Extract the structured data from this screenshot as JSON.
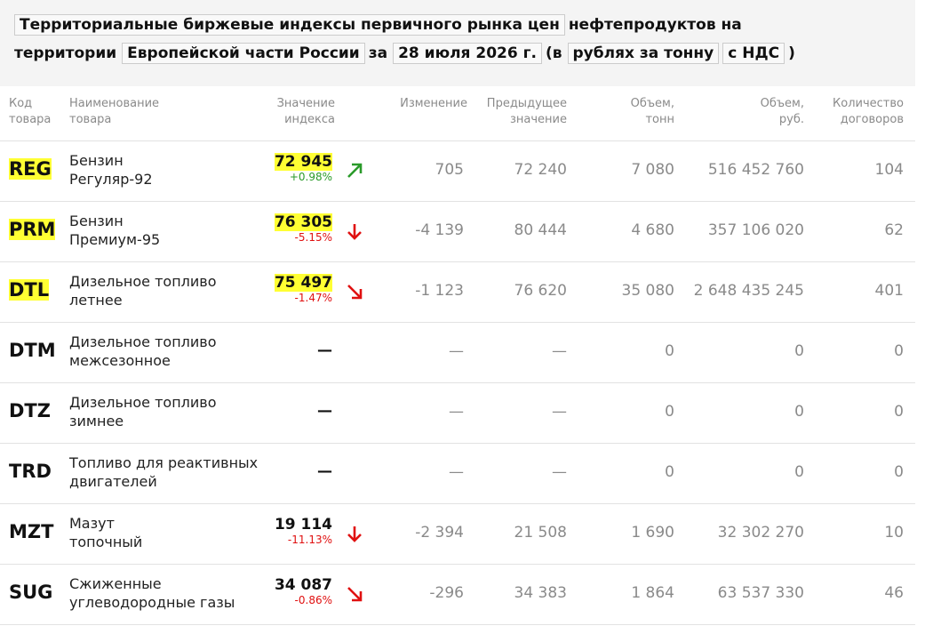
{
  "header": {
    "parts": [
      {
        "text": "Территориальные биржевые индексы первичного рынка цен",
        "boxed": true
      },
      {
        "text": "нефтепродуктов на территории",
        "boxed": false
      },
      {
        "text": "Европейской части России",
        "boxed": true
      },
      {
        "text": "за",
        "boxed": false
      },
      {
        "text": "28 июля 2026 г.",
        "boxed": true
      },
      {
        "text": "(в",
        "boxed": false
      },
      {
        "text": "рублях за тонну",
        "boxed": true
      },
      {
        "text": "с НДС",
        "boxed": true
      },
      {
        "text": ")",
        "boxed": false
      }
    ]
  },
  "table": {
    "columns": [
      [
        "Код",
        "товара"
      ],
      [
        "Наименование",
        "товара"
      ],
      [
        "Значение",
        "индекса"
      ],
      [
        "Изменение"
      ],
      [
        "Предыдущее",
        "значение"
      ],
      [
        "Объем,",
        "тонн"
      ],
      [
        "Объем,",
        "руб."
      ],
      [
        "Количество",
        "договоров"
      ]
    ],
    "rows": [
      {
        "code": "REG",
        "name": [
          "Бензин",
          "Регуляр-92"
        ],
        "index": "72 945",
        "pct": "+0.98%",
        "arrow": "up-right",
        "highlight": true,
        "change": "705",
        "prev": "72 240",
        "tonnes": "7 080",
        "rub": "516 452 760",
        "contracts": "104"
      },
      {
        "code": "PRM",
        "name": [
          "Бензин",
          "Премиум-95"
        ],
        "index": "76 305",
        "pct": "-5.15%",
        "arrow": "down",
        "highlight": true,
        "change": "-4 139",
        "prev": "80 444",
        "tonnes": "4 680",
        "rub": "357 106 020",
        "contracts": "62"
      },
      {
        "code": "DTL",
        "name": [
          "Дизельное топливо",
          "летнее"
        ],
        "index": "75 497",
        "pct": "-1.47%",
        "arrow": "down-right",
        "highlight": true,
        "change": "-1 123",
        "prev": "76 620",
        "tonnes": "35 080",
        "rub": "2 648 435 245",
        "contracts": "401"
      },
      {
        "code": "DTM",
        "name": [
          "Дизельное топливо",
          "межсезонное"
        ],
        "index": "—",
        "change": "—",
        "prev": "—",
        "tonnes": "0",
        "rub": "0",
        "contracts": "0"
      },
      {
        "code": "DTZ",
        "name": [
          "Дизельное топливо",
          "зимнее"
        ],
        "index": "—",
        "change": "—",
        "prev": "—",
        "tonnes": "0",
        "rub": "0",
        "contracts": "0"
      },
      {
        "code": "TRD",
        "name": [
          "Топливо для реактивных",
          "двигателей"
        ],
        "index": "—",
        "change": "—",
        "prev": "—",
        "tonnes": "0",
        "rub": "0",
        "contracts": "0"
      },
      {
        "code": "MZT",
        "name": [
          "Мазут",
          "топочный"
        ],
        "index": "19 114",
        "pct": "-11.13%",
        "arrow": "down",
        "highlight": false,
        "change": "-2 394",
        "prev": "21 508",
        "tonnes": "1 690",
        "rub": "32 302 270",
        "contracts": "10"
      },
      {
        "code": "SUG",
        "name": [
          "Сжиженные",
          "углеводородные газы"
        ],
        "index": "34 087",
        "pct": "-0.86%",
        "arrow": "down-right",
        "highlight": false,
        "change": "-296",
        "prev": "34 383",
        "tonnes": "1 864",
        "rub": "63 537 330",
        "contracts": "46"
      }
    ]
  }
}
